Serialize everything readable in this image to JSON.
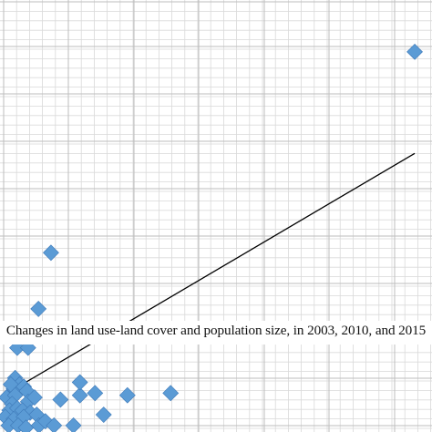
{
  "caption": "Changes in land use-land cover and population size, in 2003, 2010, and 2015",
  "chart_data": {
    "type": "scatter",
    "title": "",
    "xlabel": "",
    "ylabel": "",
    "grid": true,
    "marker": "diamond",
    "marker_color": "#5B9BD5",
    "marker_edge": "#3E79B8",
    "grid_color": "#bdbdbd",
    "trendline_color": "#000000",
    "xlim": [
      0,
      100
    ],
    "ylim": [
      0,
      100
    ],
    "points": [
      {
        "x": 96.0,
        "y": 88.0
      },
      {
        "x": 11.8,
        "y": 41.5
      },
      {
        "x": 8.9,
        "y": 28.5
      },
      {
        "x": 4.0,
        "y": 19.5
      },
      {
        "x": 6.5,
        "y": 19.5
      },
      {
        "x": 3.5,
        "y": 12.5
      },
      {
        "x": 4.5,
        "y": 11.0
      },
      {
        "x": 3.2,
        "y": 10.0
      },
      {
        "x": 2.5,
        "y": 11.0
      },
      {
        "x": 5.5,
        "y": 10.5
      },
      {
        "x": 6.2,
        "y": 9.5
      },
      {
        "x": 1.5,
        "y": 8.0
      },
      {
        "x": 3.5,
        "y": 8.5
      },
      {
        "x": 6.5,
        "y": 7.0
      },
      {
        "x": 8.0,
        "y": 8.0
      },
      {
        "x": 2.8,
        "y": 6.5
      },
      {
        "x": 2.2,
        "y": 5.0
      },
      {
        "x": 4.0,
        "y": 5.5
      },
      {
        "x": 5.2,
        "y": 5.0
      },
      {
        "x": 7.0,
        "y": 4.5
      },
      {
        "x": 1.2,
        "y": 3.5
      },
      {
        "x": 3.2,
        "y": 3.0
      },
      {
        "x": 5.5,
        "y": 3.5
      },
      {
        "x": 8.5,
        "y": 4.0
      },
      {
        "x": 2.0,
        "y": 1.5
      },
      {
        "x": 4.2,
        "y": 1.5
      },
      {
        "x": 6.0,
        "y": 1.0
      },
      {
        "x": 9.0,
        "y": 1.5
      },
      {
        "x": 10.5,
        "y": 2.5
      },
      {
        "x": 12.5,
        "y": 1.5
      },
      {
        "x": 17.0,
        "y": 1.5
      },
      {
        "x": 18.5,
        "y": 8.5
      },
      {
        "x": 22.0,
        "y": 9.0
      },
      {
        "x": 18.5,
        "y": 11.5
      },
      {
        "x": 14.0,
        "y": 7.5
      },
      {
        "x": 24.0,
        "y": 4.0
      },
      {
        "x": 29.5,
        "y": 8.5
      },
      {
        "x": 39.5,
        "y": 9.0
      }
    ],
    "trendline": {
      "x": [
        0,
        96
      ],
      "y": [
        8.0,
        64.5
      ]
    }
  }
}
